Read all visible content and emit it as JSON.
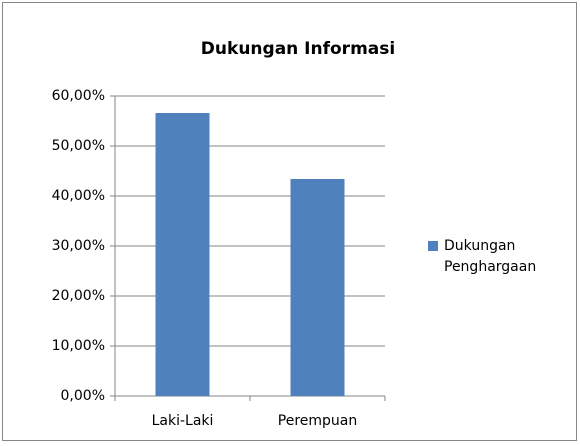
{
  "chart_data": {
    "type": "bar",
    "title": "Dukungan Informasi",
    "categories": [
      "Laki-Laki",
      "Perempuan"
    ],
    "series": [
      {
        "name": "Dukungan Penghargaan",
        "color": "#4f81bd",
        "values": [
          56.6,
          43.4
        ]
      }
    ],
    "ylim": [
      0,
      60
    ],
    "yticks": [
      {
        "value": 0,
        "label": "0,00%"
      },
      {
        "value": 10,
        "label": "10,00%"
      },
      {
        "value": 20,
        "label": "20,00%"
      },
      {
        "value": 30,
        "label": "30,00%"
      },
      {
        "value": 40,
        "label": "40,00%"
      },
      {
        "value": 50,
        "label": "50,00%"
      },
      {
        "value": 60,
        "label": "60,00%"
      }
    ],
    "grid": true,
    "legend": "right"
  }
}
